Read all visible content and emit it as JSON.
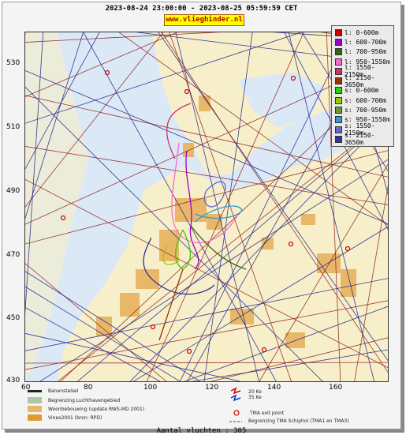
{
  "header": {
    "range": "2023-08-24 23:00:00 - 2023-08-25 05:59:59 CET",
    "site": "www.vlieghinder.nl"
  },
  "axes": {
    "y_ticks": [
      "530",
      "510",
      "490",
      "470",
      "450",
      "430"
    ],
    "x_ticks": [
      "60",
      "80",
      "100",
      "120",
      "140",
      "160"
    ]
  },
  "legend": {
    "items": [
      {
        "label": "l: 0-600m",
        "color": "#cc0000"
      },
      {
        "label": "l: 600-700m",
        "color": "#9900cc"
      },
      {
        "label": "l: 700-950m",
        "color": "#336600"
      },
      {
        "label": "l: 950-1550m",
        "color": "#ff66cc"
      },
      {
        "label": "l: 1550-2150m",
        "color": "#cc3366"
      },
      {
        "label": "l: 2150-3650m",
        "color": "#993300"
      },
      {
        "label": "s: 0-600m",
        "color": "#33cc00"
      },
      {
        "label": "s: 600-700m",
        "color": "#99cc00"
      },
      {
        "label": "s: 700-950m",
        "color": "#669933"
      },
      {
        "label": "s: 950-1550m",
        "color": "#3399cc"
      },
      {
        "label": "s: 1550-2150m",
        "color": "#6666cc"
      },
      {
        "label": "s: 2150-3650m",
        "color": "#333399"
      }
    ]
  },
  "map_legend": {
    "runway": "Banenstelsel",
    "airport_boundary": "Begrenzing Luchthavengebied",
    "housing": "Woonbebouwing (update RWS-MD 2001)",
    "vinex": "Vinex2001 (bron: RPD)",
    "contour_20": "20 Ke",
    "contour_35": "35 Ke",
    "tma_exit": "TMA exit point",
    "tma_boundary": "Begrenzing TMA Schiphol  (TMA1 en TMA3)"
  },
  "footer": {
    "count": "Aantal vluchten : 305"
  },
  "colors": {
    "water": "#dbe9f6",
    "land": "#f6efc9",
    "urban": "#e8b868",
    "track_arrival": "#1a1a8c",
    "track_departure": "#8b1a1a"
  }
}
